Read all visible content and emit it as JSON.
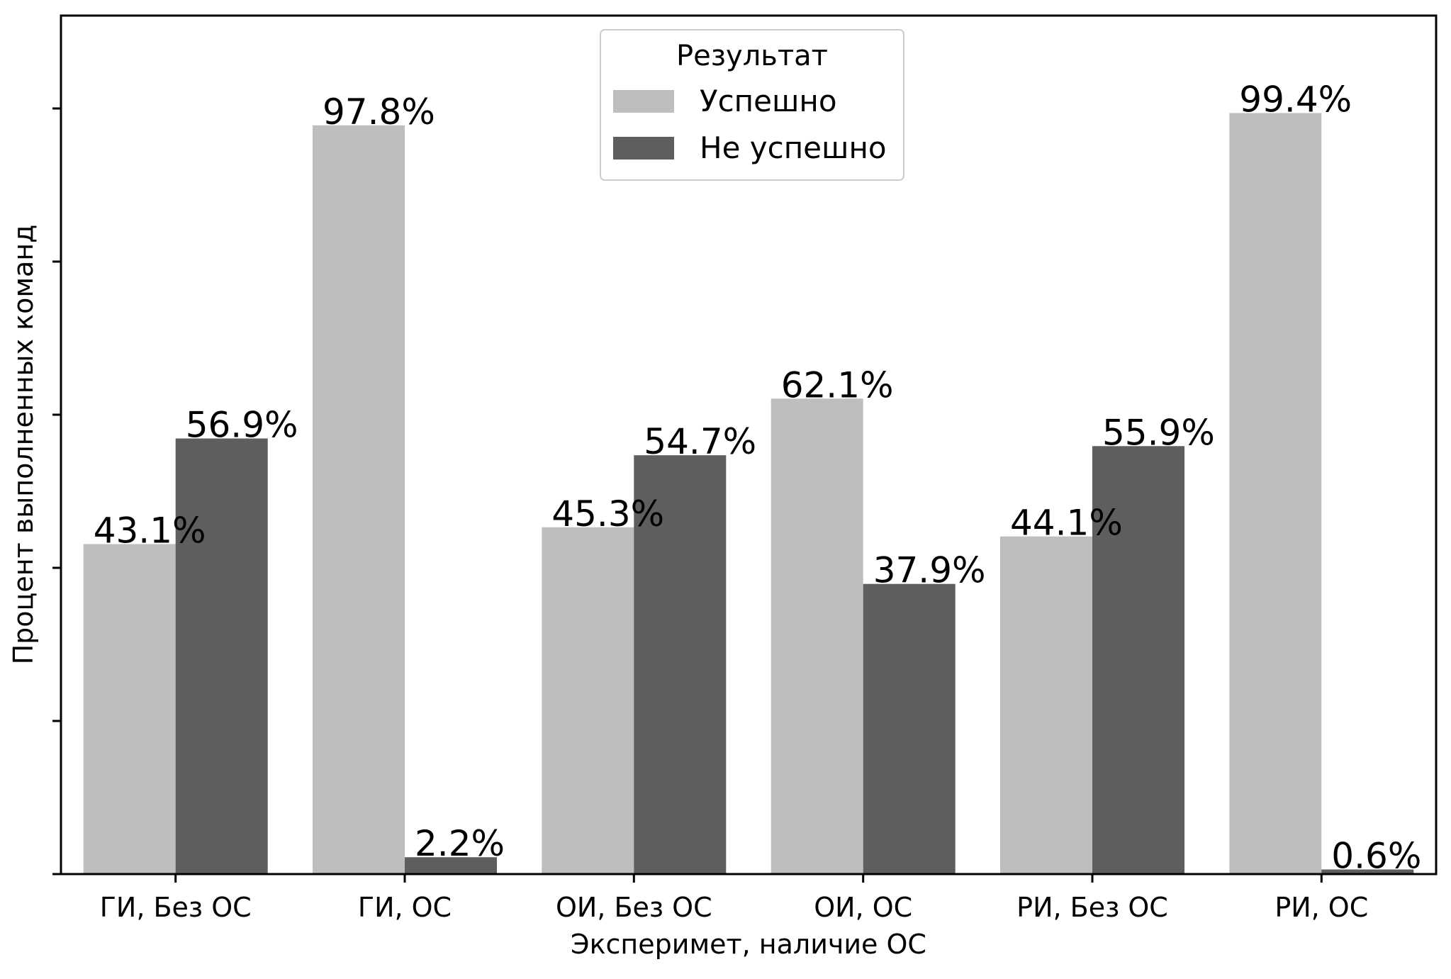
{
  "chart_data": {
    "type": "bar",
    "title": "",
    "xlabel": "Эксперимет, наличие ОС",
    "ylabel": "Процент выполненных команд",
    "ylim": [
      0,
      100
    ],
    "yticks": [
      0,
      20,
      40,
      60,
      80,
      100
    ],
    "ytick_labels_shown": false,
    "grid": false,
    "categories": [
      "ГИ, Без ОС",
      "ГИ, ОС",
      "ОИ, Без ОС",
      "ОИ, ОС",
      "РИ, Без ОС",
      "РИ, ОС"
    ],
    "series": [
      {
        "name": "Успешно",
        "color": "#bebebe",
        "values": [
          43.1,
          97.8,
          45.3,
          62.1,
          44.1,
          99.4
        ],
        "labels": [
          "43.1%",
          "97.8%",
          "45.3%",
          "62.1%",
          "44.1%",
          "99.4%"
        ]
      },
      {
        "name": "Не успешно",
        "color": "#5e5e5e",
        "values": [
          56.9,
          2.2,
          54.7,
          37.9,
          55.9,
          0.6
        ],
        "labels": [
          "56.9%",
          "2.2%",
          "54.7%",
          "37.9%",
          "55.9%",
          "0.6%"
        ]
      }
    ],
    "legend": {
      "title": "Результат",
      "placement": "top-center"
    }
  }
}
